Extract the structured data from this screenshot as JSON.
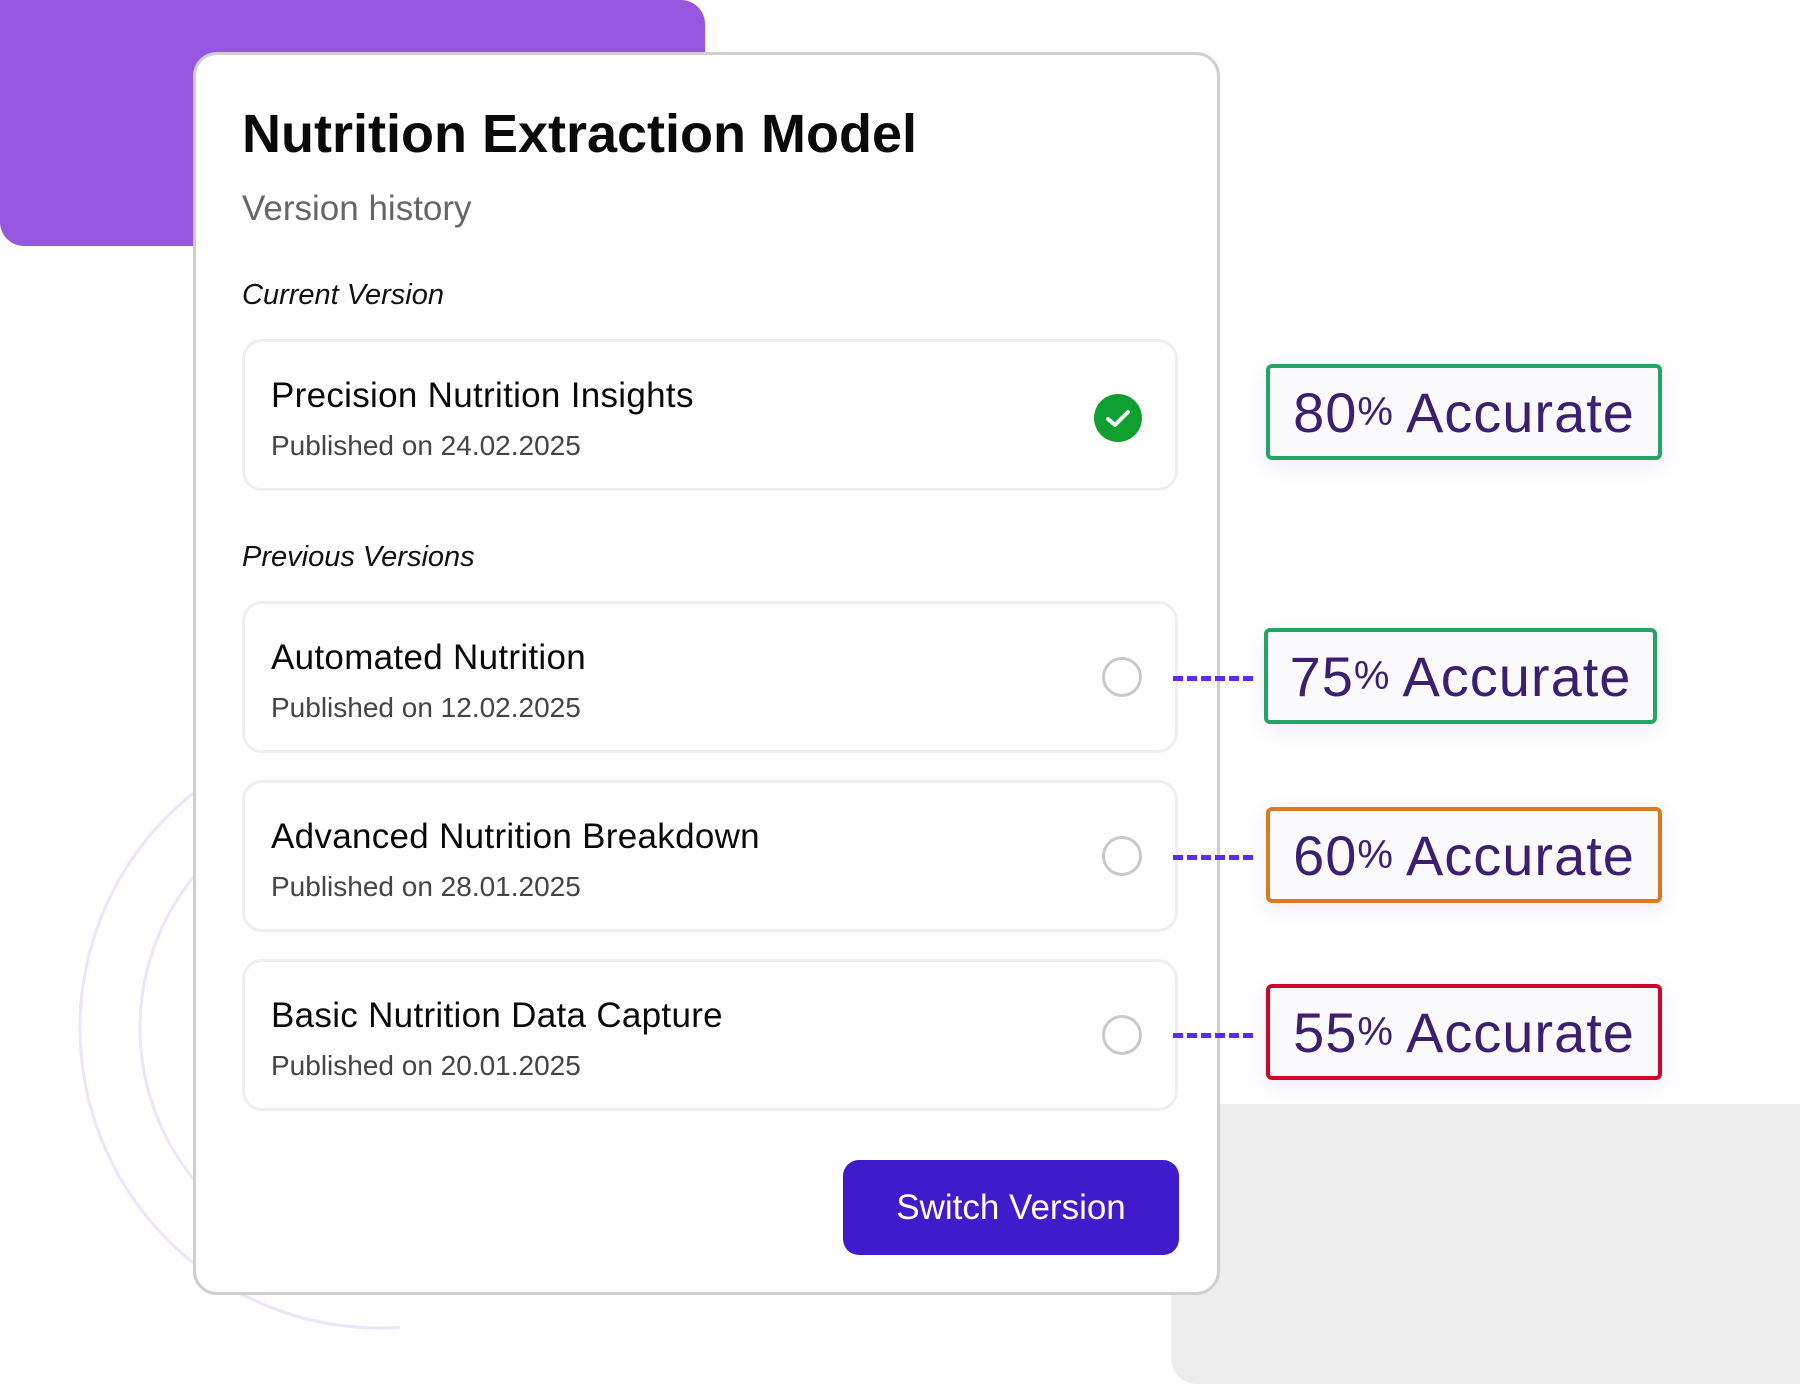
{
  "card": {
    "title": "Nutrition Extraction Model",
    "subtitle": "Version history",
    "current_label": "Current Version",
    "previous_label": "Previous Versions",
    "current": {
      "name": "Precision Nutrition Insights",
      "date": "Published on 24.02.2025",
      "selected": true
    },
    "previous": [
      {
        "name": "Automated Nutrition",
        "date": "Published on 12.02.2025",
        "selected": false
      },
      {
        "name": "Advanced Nutrition Breakdown",
        "date": "Published on 28.01.2025",
        "selected": false
      },
      {
        "name": "Basic Nutrition Data Capture",
        "date": "Published on 20.01.2025",
        "selected": false
      }
    ],
    "switch_button": "Switch Version"
  },
  "badges": [
    {
      "value": "80",
      "pct": "%",
      "label": "Accurate",
      "color": "#22A565"
    },
    {
      "value": "75",
      "pct": "%",
      "label": "Accurate",
      "color": "#22A565"
    },
    {
      "value": "60",
      "pct": "%",
      "label": "Accurate",
      "color": "#D97A1E"
    },
    {
      "value": "55",
      "pct": "%",
      "label": "Accurate",
      "color": "#D0042A"
    }
  ],
  "colors": {
    "accent": "#3F1BCB",
    "purple_bg": "#9656DD",
    "success": "#0E9F2E",
    "connector": "#5B2BF5"
  }
}
